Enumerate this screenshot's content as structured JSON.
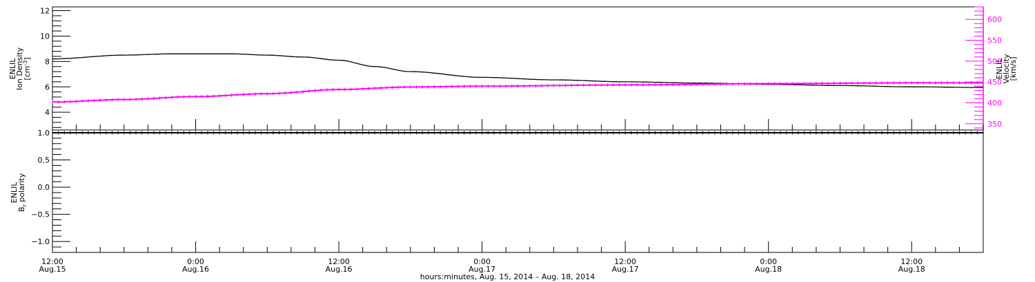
{
  "chart_data": [
    {
      "type": "line",
      "panel": "top",
      "y_title_lines": [
        "ENLIL",
        "Ion Density"
      ],
      "y_unit_base": "[cm",
      "y_unit_sup": "-3",
      "y_unit_end": "]",
      "ylim": [
        2.6,
        12.3
      ],
      "yticks": [
        4,
        6,
        8,
        10,
        12
      ],
      "right_axis": {
        "title_lines": [
          "ENLIL",
          "Velocity",
          "[km/s]"
        ],
        "ylim": [
          335,
          630
        ],
        "yticks": [
          350,
          400,
          450,
          500,
          550,
          600
        ],
        "color": "#ff00ff"
      },
      "series": [
        {
          "axis": "left",
          "color": "#000000",
          "x": [
            0,
            6,
            10,
            15,
            18,
            21,
            24,
            27,
            30,
            36,
            42,
            48,
            54,
            60,
            66,
            72,
            78
          ],
          "values": [
            8.2,
            8.5,
            8.6,
            8.6,
            8.5,
            8.35,
            8.1,
            7.6,
            7.2,
            6.75,
            6.55,
            6.4,
            6.3,
            6.2,
            6.1,
            6.0,
            5.95
          ]
        },
        {
          "axis": "right",
          "color": "#ff00ff",
          "x": [
            0,
            6,
            12,
            18,
            24,
            30,
            36,
            48,
            60,
            72,
            78
          ],
          "values": [
            402,
            408,
            415,
            422,
            432,
            438,
            440,
            443,
            446,
            448,
            448
          ]
        }
      ]
    },
    {
      "type": "line",
      "panel": "bottom",
      "y_title_lines": [
        "ENLIL"
      ],
      "y_title_b": "B",
      "y_title_sub": "r",
      "y_title_rest": " polarity",
      "ylim": [
        -1.2,
        1.05
      ],
      "yticks": [
        -1.0,
        -0.5,
        0.0,
        0.5,
        1.0
      ],
      "ytick_labels": [
        "−1.0",
        "−0.5",
        "0.0",
        "0.5",
        "1.0"
      ],
      "series": [
        {
          "color": "#000000",
          "x": [
            0,
            78
          ],
          "values": [
            1.0,
            1.0
          ]
        }
      ]
    }
  ],
  "xaxis": {
    "range_hours": [
      0,
      78
    ],
    "major_ticks": [
      {
        "h": 0,
        "time": "12:00",
        "date": "Aug.15"
      },
      {
        "h": 12,
        "time": "0:00",
        "date": "Aug.16"
      },
      {
        "h": 24,
        "time": "12:00",
        "date": "Aug.16"
      },
      {
        "h": 36,
        "time": "0:00",
        "date": "Aug.17"
      },
      {
        "h": 48,
        "time": "12:00",
        "date": "Aug.17"
      },
      {
        "h": 60,
        "time": "0:00",
        "date": "Aug.18"
      },
      {
        "h": 72,
        "time": "12:00",
        "date": "Aug.18"
      }
    ],
    "label": "hours:minutes, Aug. 15, 2014 – Aug. 18, 2014"
  }
}
